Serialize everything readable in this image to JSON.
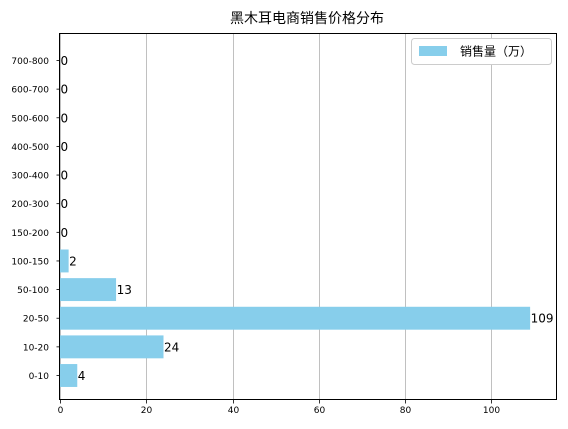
{
  "chart_data": {
    "type": "bar",
    "orientation": "horizontal",
    "title": "黑木耳电商销售价格分布",
    "categories": [
      "0-10",
      "10-20",
      "20-50",
      "50-100",
      "100-150",
      "150-200",
      "200-300",
      "300-400",
      "400-500",
      "500-600",
      "600-700",
      "700-800"
    ],
    "series": [
      {
        "name": "销售量（万）",
        "values": [
          4,
          24,
          109,
          13,
          2,
          0,
          0,
          0,
          0,
          0,
          0,
          0
        ],
        "color": "#87ceeb"
      }
    ],
    "xlim": [
      0,
      115
    ],
    "xticks": [
      0,
      20,
      40,
      60,
      80,
      100
    ],
    "grid": "x",
    "legend": "top-right",
    "xlabel": "",
    "ylabel": ""
  }
}
